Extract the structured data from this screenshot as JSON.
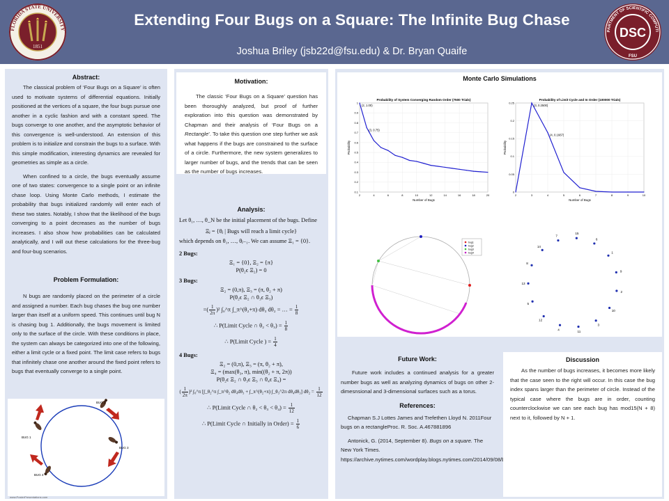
{
  "header": {
    "title": "Extending Four Bugs on a Square: The Infinite Bug Chase",
    "authors": "Joshua Briley (jsb22d@fsu.edu) & Dr. Bryan Quaife",
    "left_seal_text": "FLORIDA STATE UNIVERSITY 1851",
    "left_seal_year": "1851",
    "right_seal_text": "DEPARTMENT OF SCIENTIFIC COMPUTING",
    "right_seal_center": "DSC",
    "right_seal_bottom": "FSU"
  },
  "abstract": {
    "heading": "Abstract:",
    "p1": "The classical problem of ‘Four Bugs on a Square’ is often used to motivate systems of differential equations. Initially positioned at the vertices of a square, the four bugs pursue one another in a cyclic fashion and with a constant speed. The bugs converge to one another, and the asymptotic behavior of this convergence is well-understood. An extension of this problem is to initialize and constrain the bugs to a surface. With this simple modification, interesting dynamics are revealed for geometries as simple as a circle.",
    "p2": "When confined to a circle, the bugs eventually assume one of two states: convergence to a single point or an infinite chase loop. Using Monte Carlo methods, I estimate the probability that bugs initialized randomly will enter each of these two states. Notably, I show that the likelihood of the bugs converging to a point decreases as the number of bugs increases. I also show how probabilities can be calculated analytically, and I will out these calculations for the three-bug and four-bug scenarios."
  },
  "formulation": {
    "heading": "Problem Formulation:",
    "p1": "N bugs are randomly placed on the perimeter of a circle and assigned a number. Each bug chases the bug one number larger than itself at a uniform speed. This continues until bug N is chasing bug 1. Additionally, the bugs movement is limited only to the surface of the circle. With these conditions in place, the system can always be categorized into one of the following, either a limit cycle or a fixed point. The limit case refers to bugs that infinitely chase one another around the fixed point refers to bugs that eventually converge to a single point."
  },
  "bug_figure": {
    "labels": [
      "BUG 1",
      "BUG 2",
      "BUG 3",
      "BUG 4"
    ]
  },
  "motivation": {
    "heading": "Motivation:",
    "p1_a": "The classic ‘Four Bugs on a Square’ question has been thoroughly analyzed, but proof of further exploration into this question was demonstrated by Chapman and their analysis of ‘Four Bugs on a ",
    "p1_em": "Rectangle",
    "p1_b": "’. To take this question one step further we ask what happens if the bugs are constrained to the surface of a circle. Furthermore, the new system generalizes to larger number of bugs, and the trends that can be seen as the number of bugs increases."
  },
  "analysis": {
    "heading": "Analysis:",
    "intro1": "Let θ₁, …, θ_N be the initial placement of the bugs. Define",
    "def": "Ξⱼ = {θⱼ | Bugs will reach a limit cycle}",
    "intro2": "which depends on θ₁, …, θⱼ₋₁. We can assume Ξ₁ = {0}.",
    "bugs2": "2 Bugs:",
    "b2_l1": "Ξ₁ = {0}, Ξ₂ = {π}",
    "b2_l2": "P(θ₂ϵ Ξ₂) = 0",
    "bugs3": "3 Bugs:",
    "b3_l1": "Ξ₂ = (0,π), Ξ₃ = (π, θ₂ + π)",
    "b3_l2": "P(θ₂ϵ Ξ₂ ∩ θ₃ϵ Ξ₃)",
    "b3_l3_a": "=(",
    "b3_l3_b": ")² ∫₀^π ∫_π^(θ₂+π) dθ₃ dθ₂ = … = ",
    "b3_l4": "∴ P(Limit Cycle ∩ θ₂ < θ₃) = ",
    "b3_l5": "∴ P(Limit Cycle ) = ",
    "bugs4": "4 Bugs:",
    "b4_l1": "Ξ₂ = (0,π), Ξ₃ = (π, θ₂ + π),",
    "b4_l2": "Ξ₄ = (max(θ₃, π), min((θ₂ + π, 2π))",
    "b4_l3": "P(θ₂ϵ Ξ₂ ∩ θ₃ϵ Ξ₃ ∩ θ₄ϵ Ξ₄) =",
    "b4_l4_a": "(",
    "b4_l4_b": ")² ∫₀^π [∫_θ₂^π ∫_π^θ₂ dθ₄dθ₃ + ∫_π^(θ₂+π) ∫_θ₃^2π dθ₄dθ₃] dθ₂ = ",
    "b4_l5": "∴ P(Limit Cycle ∩ θ₂ < θ₃ < θ₄) = ",
    "b4_l6": "∴ P(Limit Cycle ∩ Initially in Order) = ",
    "f_1": "1",
    "f_2pi": "2π",
    "f_8": "8",
    "f_4": "4",
    "f_12": "12",
    "f_6": "6"
  },
  "monte_carlo": {
    "heading": "Monte Carlo Simulations"
  },
  "chart_data": [
    {
      "type": "line",
      "title": "Probability of System Converging Random Order (7500 Trials)",
      "xlabel": "Number of Bugs",
      "ylabel": "Probability",
      "xlim": [
        2,
        20
      ],
      "ylim": [
        0.1,
        1.0
      ],
      "x": [
        2,
        3,
        4,
        5,
        6,
        7,
        8,
        9,
        10,
        11,
        12,
        13,
        14,
        15,
        16,
        17,
        18,
        19,
        20
      ],
      "series": [
        {
          "values": [
            1.0,
            0.75,
            0.62,
            0.55,
            0.52,
            0.47,
            0.45,
            0.42,
            0.41,
            0.39,
            0.37,
            0.36,
            0.35,
            0.34,
            0.33,
            0.32,
            0.31,
            0.305,
            0.3
          ]
        }
      ],
      "x_ticks": [
        "2",
        "4",
        "6",
        "8",
        "10",
        "12",
        "14",
        "16",
        "18",
        "20"
      ],
      "y_ticks": [
        "0.1",
        "0.2",
        "0.3",
        "0.4",
        "0.5",
        "0.6",
        "0.7",
        "0.8",
        "0.9",
        "1"
      ],
      "annotations": [
        {
          "x": 2,
          "y": 1.0,
          "text": "(2, 1.00)"
        },
        {
          "x": 3,
          "y": 0.75,
          "text": "(3, 0.75)"
        }
      ],
      "color": "#1f1fd0"
    },
    {
      "type": "line",
      "title": "Probability of Limit Cycle and In Order (100000 Trials)",
      "xlabel": "Number of Bugs",
      "ylabel": "Probability",
      "xlim": [
        2,
        10
      ],
      "ylim": [
        0,
        0.25
      ],
      "x": [
        2,
        3,
        4,
        5,
        6,
        7,
        8,
        9,
        10
      ],
      "series": [
        {
          "values": [
            0.0,
            0.25,
            0.1667,
            0.055,
            0.012,
            0.002,
            0.0,
            0.0,
            0.0
          ]
        }
      ],
      "x_ticks": [
        "2",
        "3",
        "4",
        "5",
        "6",
        "7",
        "8",
        "9",
        "10"
      ],
      "y_ticks": [
        "0",
        "0.05",
        "0.1",
        "0.15",
        "0.2",
        "0.25"
      ],
      "annotations": [
        {
          "x": 3,
          "y": 0.25,
          "text": "(3, 0.2500)"
        },
        {
          "x": 4,
          "y": 0.1667,
          "text": "(4, 0.1667)"
        }
      ],
      "color": "#1f1fd0"
    }
  ],
  "circle_sim": {
    "legend": [
      "bug1",
      "bug2",
      "bug3",
      "bug4"
    ],
    "colors": [
      "#e02020",
      "#2020c0",
      "#40c040",
      "#c020c0"
    ]
  },
  "circle_order": {
    "labels": [
      "15",
      "6",
      "1",
      "9",
      "2",
      "10",
      "3",
      "11",
      "4",
      "12",
      "5",
      "13",
      "8",
      "14",
      "7"
    ]
  },
  "future": {
    "heading": "Future Work:",
    "p1": "Future work includes a continued analysis for a greater number bugs as well as analyzing dynamics of bugs on other 2-dimesnsional and 3-dimensional surfaces such as a torus."
  },
  "references": {
    "heading": "References:",
    "r1": "Chapman S.J Lottes James and Trefethen Lloyd N. 2011Four bugs on a rectangleProc. R. Soc. A.467881896",
    "r2_a": "Antonick, G. (2014, September 8). ",
    "r2_em": "Bugs on a square.",
    "r2_b": " The New York Times. https://archive.nytimes.com/wordplay.blogs.nytimes.com/2014/09/08/bugs/"
  },
  "discussion": {
    "heading": "Discussion",
    "p1": "As the number of bugs increases, it becomes more likely that the case seen to the right will occur. In this case the bug index spans larger than the perimeter of circle. Instead of the typical case where the bugs are in order, counting counterclockwise we can see each bug has mod15(N + 8) next to it, followed by N + 1."
  },
  "footer": "www.PosterPresentations.com"
}
